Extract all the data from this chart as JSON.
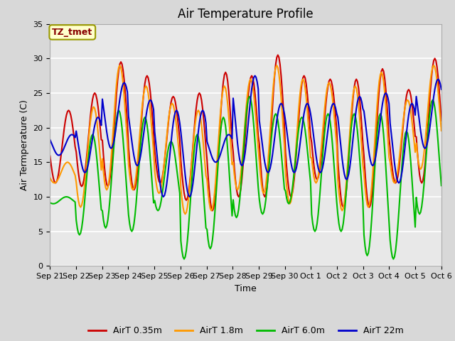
{
  "title": "Air Temperature Profile",
  "xlabel": "Time",
  "ylabel": "Air Termperature (C)",
  "ylim": [
    0,
    35
  ],
  "n_days": 15,
  "background_color": "#d8d8d8",
  "plot_bg": "#e8e8e8",
  "grid_color": "white",
  "series": [
    {
      "label": "AirT 0.35m",
      "color": "#cc0000"
    },
    {
      "label": "AirT 1.8m",
      "color": "#ff9900"
    },
    {
      "label": "AirT 6.0m",
      "color": "#00bb00"
    },
    {
      "label": "AirT 22m",
      "color": "#0000cc"
    }
  ],
  "xtick_labels": [
    "Sep 21",
    "Sep 22",
    "Sep 23",
    "Sep 24",
    "Sep 25",
    "Sep 26",
    "Sep 27",
    "Sep 28",
    "Sep 29",
    "Sep 30",
    "Oct 1",
    "Oct 2",
    "Oct 3",
    "Oct 4",
    "Oct 5",
    "Oct 6"
  ],
  "yticks": [
    0,
    5,
    10,
    15,
    20,
    25,
    30,
    35
  ],
  "annotation_text": "TZ_tmet",
  "annotation_color": "#880000",
  "annotation_bg": "#ffffcc",
  "annotation_border": "#999900",
  "title_fontsize": 12,
  "label_fontsize": 9,
  "tick_fontsize": 8,
  "legend_fontsize": 9,
  "peaks_red": [
    22.5,
    25.0,
    29.5,
    27.5,
    24.5,
    25.0,
    28.0,
    27.5,
    30.5,
    27.5,
    27.0,
    27.0,
    28.5,
    25.5,
    30.0
  ],
  "troughs_red": [
    12.0,
    11.5,
    11.5,
    11.0,
    12.0,
    9.5,
    8.0,
    10.0,
    10.0,
    10.0,
    12.5,
    8.5,
    8.5,
    12.0,
    12.0
  ],
  "peaks_orange": [
    15.0,
    23.0,
    29.0,
    26.0,
    23.5,
    22.5,
    26.0,
    27.0,
    29.0,
    27.0,
    26.5,
    26.0,
    28.0,
    24.0,
    29.0
  ],
  "troughs_orange": [
    12.0,
    8.5,
    11.0,
    11.0,
    10.5,
    7.5,
    8.0,
    11.0,
    10.5,
    9.0,
    12.0,
    8.0,
    8.5,
    12.0,
    14.0
  ],
  "peaks_green": [
    10.0,
    19.0,
    22.5,
    21.5,
    18.0,
    19.0,
    21.5,
    24.5,
    22.0,
    21.5,
    22.0,
    22.0,
    22.0,
    19.5,
    24.0
  ],
  "troughs_green": [
    9.0,
    4.5,
    5.5,
    5.0,
    8.0,
    1.0,
    2.5,
    7.0,
    7.5,
    9.0,
    5.0,
    5.0,
    1.5,
    1.0,
    7.5
  ],
  "peaks_blue": [
    19.0,
    21.5,
    26.5,
    24.0,
    22.5,
    22.5,
    19.0,
    27.5,
    23.5,
    23.5,
    23.5,
    24.5,
    25.0,
    23.5,
    27.0
  ],
  "troughs_blue": [
    16.0,
    13.5,
    17.0,
    14.5,
    10.0,
    10.0,
    15.0,
    14.5,
    13.5,
    13.5,
    13.5,
    12.5,
    14.5,
    12.0,
    17.0
  ],
  "phase_red": 0,
  "phase_orange": 1,
  "phase_green": 2,
  "phase_blue": -3
}
